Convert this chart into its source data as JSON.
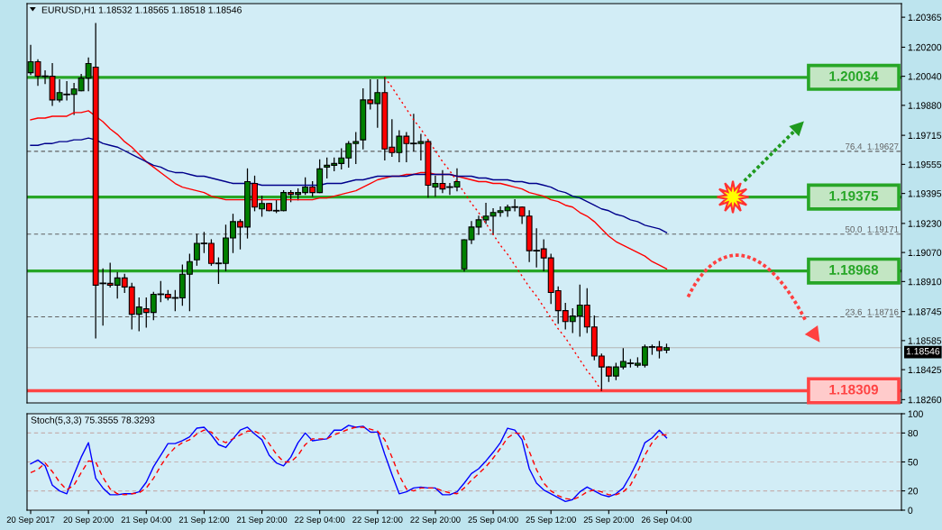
{
  "chart_data": [
    {
      "type": "candlestick",
      "title": "EURUSD,H1 1.18532 1.18565 1.18518 1.18546",
      "categories": [
        null,
        null,
        null,
        null,
        null,
        null,
        null,
        null,
        null,
        null,
        null,
        null,
        null,
        null,
        null,
        null,
        null,
        null,
        null,
        null,
        null,
        null,
        null,
        null,
        null,
        null,
        null,
        null,
        null,
        null,
        null,
        null,
        null,
        null,
        null,
        null,
        null,
        null,
        null,
        null,
        null,
        null,
        null,
        null,
        null,
        null,
        null,
        null,
        null,
        null,
        null,
        null,
        null,
        null,
        null,
        null,
        null,
        null,
        null,
        null,
        null,
        null,
        null,
        null,
        null,
        null,
        null,
        null,
        null,
        null,
        null,
        null,
        null,
        null,
        null,
        null,
        null,
        null,
        null,
        null,
        null,
        null,
        null,
        null,
        null,
        null,
        null,
        null,
        null
      ],
      "ohlc": [
        [
          1.2006,
          1.2021,
          1.2005,
          1.2012
        ],
        [
          1.2012,
          1.2013,
          1.1999,
          1.2004
        ],
        [
          1.2004,
          1.2007,
          1.2,
          1.2004
        ],
        [
          1.2004,
          1.2011,
          1.1988,
          1.1991
        ],
        [
          1.1991,
          1.2002,
          1.199,
          1.1995
        ],
        [
          1.1994,
          1.2001,
          1.1991,
          1.1994
        ],
        [
          1.1994,
          1.2,
          1.1983,
          1.1997
        ],
        [
          1.1996,
          1.2005,
          1.1996,
          1.2003
        ],
        [
          1.2003,
          1.2014,
          1.1996,
          1.2011
        ],
        [
          1.2009,
          1.2033,
          1.186,
          1.1889
        ],
        [
          1.189,
          1.1898,
          1.1867,
          1.189
        ],
        [
          1.189,
          1.1901,
          1.1888,
          1.1889
        ],
        [
          1.1889,
          1.1896,
          1.1882,
          1.1893
        ],
        [
          1.1893,
          1.1895,
          1.1885,
          1.1888
        ],
        [
          1.1888,
          1.189,
          1.1865,
          1.1873
        ],
        [
          1.1873,
          1.1882,
          1.1864,
          1.1877
        ],
        [
          1.1876,
          1.1882,
          1.1866,
          1.1874
        ],
        [
          1.1874,
          1.1885,
          1.187,
          1.1884
        ],
        [
          1.1884,
          1.1891,
          1.188,
          1.1884
        ],
        [
          1.1884,
          1.1886,
          1.1881,
          1.1882
        ],
        [
          1.1882,
          1.1886,
          1.1875,
          1.1882
        ],
        [
          1.1882,
          1.19,
          1.1878,
          1.1895
        ],
        [
          1.1895,
          1.1906,
          1.1875,
          1.1902
        ],
        [
          1.1903,
          1.1917,
          1.19,
          1.1912
        ],
        [
          1.1912,
          1.1918,
          1.1907,
          1.1912
        ],
        [
          1.1912,
          1.1914,
          1.19,
          1.1901
        ],
        [
          1.1901,
          1.1904,
          1.189,
          1.1901
        ],
        [
          1.1901,
          1.1922,
          1.1897,
          1.1915
        ],
        [
          1.1915,
          1.1928,
          1.1907,
          1.1924
        ],
        [
          1.1924,
          1.1925,
          1.1909,
          1.1921
        ],
        [
          1.1921,
          1.1953,
          1.1915,
          1.1946
        ],
        [
          1.1945,
          1.1949,
          1.193,
          1.1932
        ],
        [
          1.1931,
          1.1938,
          1.1927,
          1.1934
        ],
        [
          1.1934,
          1.1934,
          1.193,
          1.193
        ],
        [
          1.193,
          1.1936,
          1.1929,
          1.193
        ],
        [
          1.193,
          1.1941,
          1.193,
          1.194
        ],
        [
          1.194,
          1.1941,
          1.1935,
          1.1939
        ],
        [
          1.1939,
          1.1942,
          1.1936,
          1.194
        ],
        [
          1.194,
          1.1948,
          1.1939,
          1.1943
        ],
        [
          1.1943,
          1.1946,
          1.1938,
          1.194
        ],
        [
          1.194,
          1.1958,
          1.194,
          1.1953
        ],
        [
          1.1954,
          1.1959,
          1.1948,
          1.1955
        ],
        [
          1.1955,
          1.1959,
          1.1952,
          1.1956
        ],
        [
          1.1956,
          1.1964,
          1.1953,
          1.1959
        ],
        [
          1.1959,
          1.1968,
          1.1954,
          1.1967
        ],
        [
          1.1967,
          1.1973,
          1.1956,
          1.1968
        ],
        [
          1.1969,
          1.1997,
          1.1964,
          1.1991
        ],
        [
          1.1991,
          1.2002,
          1.1986,
          1.1989
        ],
        [
          1.1989,
          1.2002,
          1.1976,
          1.1995
        ],
        [
          1.1995,
          1.20034,
          1.1958,
          1.1964
        ],
        [
          1.1965,
          1.198,
          1.196,
          1.1962
        ],
        [
          1.1962,
          1.1974,
          1.1957,
          1.1971
        ],
        [
          1.1971,
          1.1973,
          1.1957,
          1.1967
        ],
        [
          1.1967,
          1.1983,
          1.1963,
          1.1967
        ],
        [
          1.1967,
          1.1972,
          1.1958,
          1.1968
        ],
        [
          1.1968,
          1.1969,
          1.19375,
          1.1944
        ],
        [
          1.1943,
          1.1949,
          1.1938,
          1.1945
        ],
        [
          1.1945,
          1.1952,
          1.194,
          1.1942
        ],
        [
          1.1943,
          1.1945,
          1.1939,
          1.1943
        ],
        [
          1.1943,
          1.1953,
          1.1941,
          1.1946
        ],
        [
          1.1898,
          1.1914,
          1.18968,
          1.1914
        ],
        [
          1.1914,
          1.1924,
          1.1912,
          1.1921
        ],
        [
          1.1921,
          1.1927,
          1.1917,
          1.1925
        ],
        [
          1.1925,
          1.1934,
          1.1923,
          1.1927
        ],
        [
          1.1927,
          1.1931,
          1.1917,
          1.1929
        ],
        [
          1.1929,
          1.1932,
          1.1927,
          1.193
        ],
        [
          1.193,
          1.1933,
          1.1927,
          1.1932
        ],
        [
          1.1932,
          1.1936,
          1.193,
          1.1932
        ],
        [
          1.1932,
          1.1932,
          1.1923,
          1.1927
        ],
        [
          1.1927,
          1.193,
          1.1902,
          1.1908
        ],
        [
          1.1908,
          1.192,
          1.1899,
          1.1908
        ],
        [
          1.1909,
          1.1914,
          1.1897,
          1.1904
        ],
        [
          1.1904,
          1.1906,
          1.1879,
          1.1885
        ],
        [
          1.1886,
          1.1888,
          1.1868,
          1.1875
        ],
        [
          1.1875,
          1.1879,
          1.1865,
          1.1869
        ],
        [
          1.1869,
          1.1876,
          1.1863,
          1.1872
        ],
        [
          1.1872,
          1.1889,
          1.1861,
          1.1878
        ],
        [
          1.1878,
          1.1887,
          1.1863,
          1.1866
        ],
        [
          1.1866,
          1.1872,
          1.1848,
          1.185
        ],
        [
          1.185,
          1.1851,
          1.18309,
          1.1844
        ],
        [
          1.1844,
          1.1844,
          1.1836,
          1.1839
        ],
        [
          1.1839,
          1.1846,
          1.1837,
          1.1844
        ],
        [
          1.1844,
          1.1854,
          1.1843,
          1.1847
        ],
        [
          1.1846,
          1.1848,
          1.1844,
          1.1846
        ],
        [
          1.1845,
          1.1849,
          1.1844,
          1.1846
        ],
        [
          1.1845,
          1.1856,
          1.1844,
          1.1855
        ],
        [
          1.1855,
          1.1856,
          1.1851,
          1.1855
        ],
        [
          1.1855,
          1.1858,
          1.1849,
          1.1853
        ],
        [
          1.18532,
          1.18565,
          1.18518,
          1.18546
        ]
      ],
      "colors": [
        "#008000",
        "#ff0000",
        "#000000",
        "#ff0000",
        "#008000",
        "#000000",
        "#008000",
        "#008000",
        "#008000",
        "#ff0000",
        "#000000",
        "#ff0000",
        "#008000",
        "#ff0000",
        "#ff0000",
        "#008000",
        "#ff0000",
        "#008000",
        "#000000",
        "#ff0000",
        "#000000",
        "#008000",
        "#008000",
        "#008000",
        "#000000",
        "#ff0000",
        "#000000",
        "#008000",
        "#008000",
        "#ff0000",
        "#008000",
        "#ff0000",
        "#008000",
        "#ff0000",
        "#000000",
        "#008000",
        "#ff0000",
        "#008000",
        "#008000",
        "#ff0000",
        "#008000",
        "#008000",
        "#008000",
        "#008000",
        "#008000",
        "#008000",
        "#008000",
        "#ff0000",
        "#008000",
        "#ff0000",
        "#ff0000",
        "#008000",
        "#ff0000",
        "#000000",
        "#008000",
        "#ff0000",
        "#008000",
        "#ff0000",
        "#000000",
        "#008000",
        "#008000",
        "#008000",
        "#008000",
        "#008000",
        "#008000",
        "#008000",
        "#008000",
        "#000000",
        "#ff0000",
        "#ff0000",
        "#000000",
        "#ff0000",
        "#ff0000",
        "#ff0000",
        "#ff0000",
        "#008000",
        "#008000",
        "#ff0000",
        "#ff0000",
        "#ff0000",
        "#ff0000",
        "#008000",
        "#008000",
        "#000000",
        "#008000",
        "#008000",
        "#000000",
        "#ff0000",
        "#008000"
      ],
      "series": [
        {
          "type": "line",
          "color": "#ff0000",
          "values": [
            1.198,
            1.1981,
            1.1981,
            1.1982,
            1.1982,
            1.1982,
            1.1984,
            1.1984,
            1.1985,
            1.1982,
            1.1979,
            1.1975,
            1.1972,
            1.1968,
            1.1965,
            1.1961,
            1.1957,
            1.1954,
            1.1951,
            1.1948,
            1.1945,
            1.1943,
            1.1942,
            1.1941,
            1.194,
            1.1938,
            1.1937,
            1.1936,
            1.1936,
            1.1936,
            1.1936,
            1.1936,
            1.1936,
            1.1936,
            1.1936,
            1.1936,
            1.1936,
            1.1936,
            1.1936,
            1.1936,
            1.1937,
            1.1937,
            1.1938,
            1.1939,
            1.194,
            1.1941,
            1.1943,
            1.1945,
            1.1947,
            1.1948,
            1.1949,
            1.1949,
            1.195,
            1.195,
            1.1951,
            1.1951,
            1.195,
            1.195,
            1.195,
            1.1949,
            1.1948,
            1.1947,
            1.1946,
            1.1946,
            1.1945,
            1.1945,
            1.1944,
            1.1943,
            1.1942,
            1.194,
            1.1939,
            1.1938,
            1.1936,
            1.1935,
            1.1933,
            1.1932,
            1.1929,
            1.1927,
            1.1924,
            1.192,
            1.1916,
            1.1913,
            1.1911,
            1.1909,
            1.1907,
            1.1905,
            1.1902,
            1.19,
            1.1898
          ]
        },
        {
          "type": "line",
          "color": "#00008b",
          "values": [
            1.1966,
            1.1966,
            1.1967,
            1.1967,
            1.1968,
            1.1968,
            1.1969,
            1.1969,
            1.197,
            1.1969,
            1.1967,
            1.1966,
            1.1965,
            1.1963,
            1.1961,
            1.1959,
            1.1957,
            1.1955,
            1.1954,
            1.1952,
            1.1951,
            1.1951,
            1.195,
            1.1949,
            1.1949,
            1.1948,
            1.1947,
            1.1946,
            1.1945,
            1.1945,
            1.1945,
            1.1945,
            1.1944,
            1.1944,
            1.1944,
            1.1944,
            1.1944,
            1.1944,
            1.1944,
            1.1944,
            1.1944,
            1.1945,
            1.1945,
            1.1945,
            1.1946,
            1.1947,
            1.1947,
            1.1948,
            1.1949,
            1.1949,
            1.1949,
            1.1949,
            1.1949,
            1.195,
            1.195,
            1.195,
            1.195,
            1.195,
            1.195,
            1.1949,
            1.1949,
            1.1949,
            1.1948,
            1.1948,
            1.1947,
            1.1947,
            1.1947,
            1.1946,
            1.1946,
            1.1945,
            1.1945,
            1.1944,
            1.1943,
            1.1941,
            1.194,
            1.1938,
            1.1937,
            1.1935,
            1.1933,
            1.1931,
            1.193,
            1.1928,
            1.1927,
            1.1925,
            1.1924,
            1.1922,
            1.1921,
            1.192,
            1.1918
          ]
        },
        {
          "type": "line",
          "color": "#ff0000",
          "line_style": "dotted",
          "values": [
            null,
            null,
            null,
            null,
            null,
            null,
            null,
            null,
            null,
            null,
            null,
            null,
            null,
            null,
            null,
            null,
            null,
            null,
            null,
            null,
            null,
            null,
            null,
            null,
            null,
            null,
            null,
            null,
            null,
            null,
            null,
            null,
            null,
            null,
            null,
            null,
            null,
            null,
            null,
            null,
            null,
            null,
            null,
            null,
            null,
            null,
            null,
            null,
            null,
            1.20034,
            1.1998,
            1.1992,
            1.1986,
            1.198,
            1.1975,
            1.1969,
            1.1963,
            1.1957,
            1.1952,
            1.1946,
            1.194,
            1.1934,
            1.1929,
            1.1923,
            1.1917,
            1.1911,
            1.1906,
            1.19,
            1.1894,
            1.1888,
            1.1883,
            1.1877,
            1.1871,
            1.1865,
            1.186,
            1.1854,
            1.1848,
            1.1842,
            1.1837,
            1.18309,
            null,
            null,
            null,
            null,
            null,
            null,
            null,
            null,
            null
          ]
        }
      ],
      "ylim": [
        1.18242,
        1.2044
      ],
      "yticks": [
        {
          "value": 1.1826,
          "label": "1.18260"
        },
        1.18425,
        1.18585,
        1.18745,
        {
          "value": 1.1891,
          "label": "1.18910"
        },
        {
          "value": 1.1907,
          "label": "1.19070"
        },
        {
          "value": 1.1923,
          "label": "1.19230"
        },
        1.19395,
        1.19555,
        1.19715,
        {
          "value": 1.1988,
          "label": "1.19880"
        },
        {
          "value": 1.2004,
          "label": "1.20040"
        },
        {
          "value": 1.202,
          "label": "1.20200"
        },
        1.20365
      ],
      "ref_lines": [
        {
          "axis": "y",
          "value": 1.20034,
          "label": "1.20034",
          "color": "#27a627",
          "line_style": "solid"
        },
        {
          "axis": "y",
          "value": 1.19375,
          "label": "1.19375",
          "color": "#27a627",
          "line_style": "solid"
        },
        {
          "axis": "y",
          "value": 1.18968,
          "label": "1.18968",
          "color": "#27a627",
          "line_style": "solid"
        },
        {
          "axis": "y",
          "value": 1.18309,
          "label": "1.18309",
          "color": "#ff4444",
          "line_style": "solid"
        },
        {
          "axis": "y",
          "value": 1.19627,
          "label": "76.4  1.19627",
          "color": "#606060",
          "line_style": "dashed"
        },
        {
          "axis": "y",
          "value": 1.19171,
          "label": "50.0  1.19171",
          "color": "#606060",
          "line_style": "dashed"
        },
        {
          "axis": "y",
          "value": 1.18716,
          "label": "23.6  1.18716",
          "color": "#606060",
          "line_style": "dashed"
        },
        {
          "axis": "y",
          "value": 1.18546,
          "label": "1.18546",
          "color": "#b4b4b4",
          "line_style": "solid"
        }
      ]
    },
    {
      "type": "line",
      "title": "Stoch(5,3,3) 75.3555 78.3293",
      "categories": [
        "20 Sep 2017",
        null,
        null,
        null,
        null,
        null,
        null,
        null,
        "20 Sep 20:00",
        null,
        null,
        null,
        null,
        null,
        null,
        null,
        "21 Sep 04:00",
        null,
        null,
        null,
        null,
        null,
        null,
        null,
        "21 Sep 12:00",
        null,
        null,
        null,
        null,
        null,
        null,
        null,
        "21 Sep 20:00",
        null,
        null,
        null,
        null,
        null,
        null,
        null,
        "22 Sep 04:00",
        null,
        null,
        null,
        null,
        null,
        null,
        null,
        "22 Sep 12:00",
        null,
        null,
        null,
        null,
        null,
        null,
        null,
        "22 Sep 20:00",
        null,
        null,
        null,
        null,
        null,
        null,
        null,
        "25 Sep 04:00",
        null,
        null,
        null,
        null,
        null,
        null,
        null,
        "25 Sep 12:00",
        null,
        null,
        null,
        null,
        null,
        null,
        null,
        "25 Sep 20:00",
        null,
        null,
        null,
        null,
        null,
        null,
        null,
        "26 Sep 04:00"
      ],
      "series": [
        {
          "color": "#0000ff",
          "values": [
            48,
            52,
            46,
            26,
            20,
            17,
            37,
            55,
            70,
            33,
            23,
            16,
            16,
            17,
            17,
            19,
            29,
            45,
            57,
            69,
            69,
            72,
            76,
            85,
            86,
            78,
            68,
            65,
            74,
            83,
            86,
            79,
            73,
            57,
            49,
            46,
            55,
            70,
            80,
            72,
            73,
            74,
            83,
            83,
            88,
            86,
            87,
            81,
            81,
            58,
            37,
            17,
            19,
            23,
            24,
            23,
            23,
            16,
            16,
            19,
            28,
            38,
            43,
            51,
            60,
            70,
            85,
            83,
            73,
            43,
            28,
            21,
            17,
            13,
            9,
            11,
            19,
            24,
            20,
            16,
            14,
            17,
            23,
            36,
            51,
            70,
            75,
            83,
            75
          ]
        },
        {
          "color": "#ff0000",
          "line_style": "dashed",
          "values": [
            39,
            42,
            49,
            40,
            29,
            21,
            26,
            39,
            51,
            50,
            34,
            22,
            17,
            16,
            17,
            18,
            23,
            33,
            46,
            57,
            65,
            70,
            73,
            79,
            83,
            81,
            73,
            70,
            74,
            78,
            82,
            82,
            78,
            69,
            58,
            50,
            50,
            57,
            68,
            74,
            74,
            74,
            78,
            81,
            84,
            86,
            86,
            84,
            82,
            73,
            55,
            36,
            22,
            20,
            23,
            23,
            23,
            20,
            18,
            17,
            23,
            31,
            38,
            45,
            54,
            64,
            75,
            80,
            79,
            61,
            42,
            28,
            20,
            15,
            12,
            11,
            14,
            19,
            21,
            19,
            16,
            16,
            19,
            26,
            40,
            57,
            70,
            78,
            78
          ]
        }
      ],
      "ylim": [
        0,
        100
      ],
      "yticks": [
        0,
        20,
        50,
        80,
        100
      ],
      "ref_lines": [
        {
          "axis": "y",
          "value": 20,
          "color": "#c4b0b0",
          "line_style": "dashed"
        },
        {
          "axis": "y",
          "value": 50,
          "color": "#c4b0b0",
          "line_style": "dashed"
        },
        {
          "axis": "y",
          "value": 80,
          "color": "#c4b0b0",
          "line_style": "dashed"
        }
      ]
    }
  ]
}
